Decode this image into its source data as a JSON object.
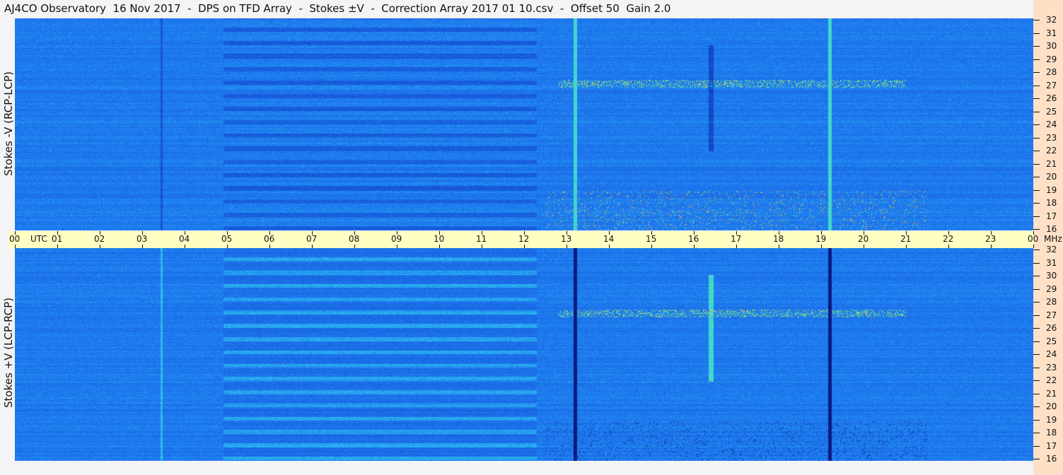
{
  "chart_data": {
    "type": "heatmap",
    "title": "AJ4CO Observatory  16 Nov 2017  -  DPS on TFD Array  -  Stokes ±V  -  Correction Array 2017 01 10.csv  -  Offset 50  Gain 2.0",
    "panels": [
      {
        "ylabel": "Stokes -V (RCP-LCP)"
      },
      {
        "ylabel": "Stokes +V (LCP-RCP)"
      }
    ],
    "x_ticks": [
      "00",
      "01",
      "02",
      "03",
      "04",
      "05",
      "06",
      "07",
      "08",
      "09",
      "10",
      "11",
      "12",
      "13",
      "14",
      "15",
      "16",
      "17",
      "18",
      "19",
      "20",
      "21",
      "22",
      "23",
      "00"
    ],
    "x_unit": "UTC",
    "y_ticks": [
      "32",
      "31",
      "30",
      "29",
      "28",
      "27",
      "26",
      "25",
      "24",
      "23",
      "22",
      "21",
      "20",
      "19",
      "18",
      "17",
      "16"
    ],
    "y_unit": "MHz",
    "xlim": [
      0,
      24
    ],
    "ylim": [
      16,
      32
    ],
    "colormap": [
      "#0a1a80",
      "#1450d0",
      "#1e78f0",
      "#30c8f0",
      "#60f090",
      "#f0f040",
      "#f08030",
      "#f040c0"
    ]
  }
}
